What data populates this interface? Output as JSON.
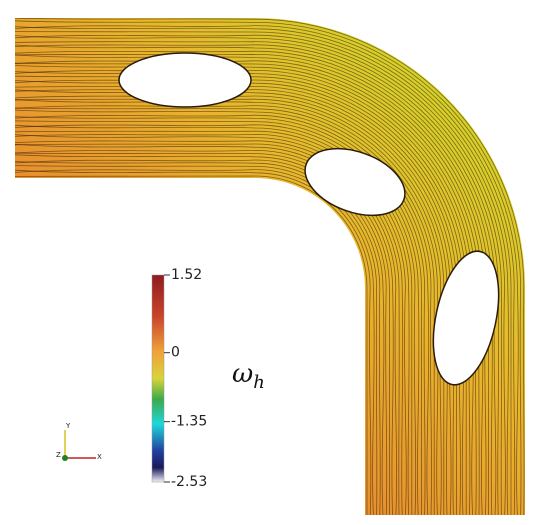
{
  "colorbar": {
    "label": "ω",
    "label_subscript": "h",
    "ticks": [
      1.52,
      0,
      -1.35,
      -2.53
    ]
  },
  "axes_triad": {
    "x": "X",
    "y": "Y",
    "z": "Z"
  }
}
